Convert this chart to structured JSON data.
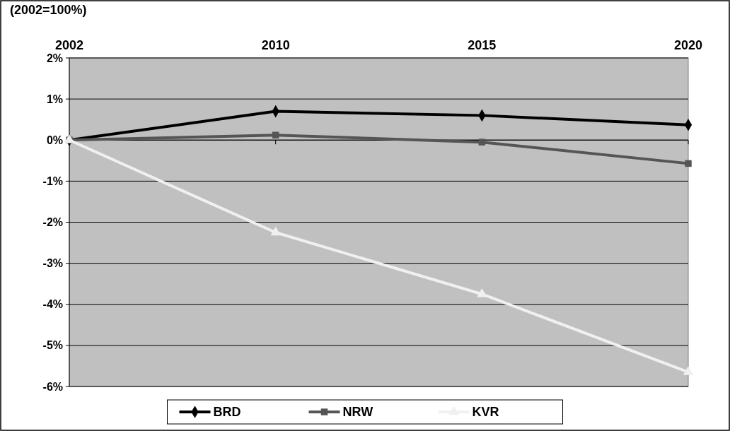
{
  "chart_data": {
    "type": "line",
    "title": "(2002=100%)",
    "categories": [
      "2002",
      "2010",
      "2015",
      "2020"
    ],
    "series": [
      {
        "name": "BRD",
        "color": "#000000",
        "marker": "diamond",
        "values": [
          0,
          0.7,
          0.6,
          0.37
        ]
      },
      {
        "name": "NRW",
        "color": "#555555",
        "marker": "square",
        "values": [
          0,
          0.12,
          -0.05,
          -0.57
        ]
      },
      {
        "name": "KVR",
        "color": "#f0f0f0",
        "marker": "triangle",
        "values": [
          0,
          -2.25,
          -3.75,
          -5.65
        ]
      }
    ],
    "ylim": [
      -6,
      2
    ],
    "yticks": [
      {
        "value": 2,
        "label": "2%"
      },
      {
        "value": 1,
        "label": "1%"
      },
      {
        "value": 0,
        "label": "0%"
      },
      {
        "value": -1,
        "label": "-1%"
      },
      {
        "value": -2,
        "label": "-2%"
      },
      {
        "value": -3,
        "label": "-3%"
      },
      {
        "value": -4,
        "label": "-4%"
      },
      {
        "value": -5,
        "label": "-5%"
      },
      {
        "value": -6,
        "label": "-6%"
      }
    ],
    "grid": "y",
    "legend": "bottom"
  }
}
